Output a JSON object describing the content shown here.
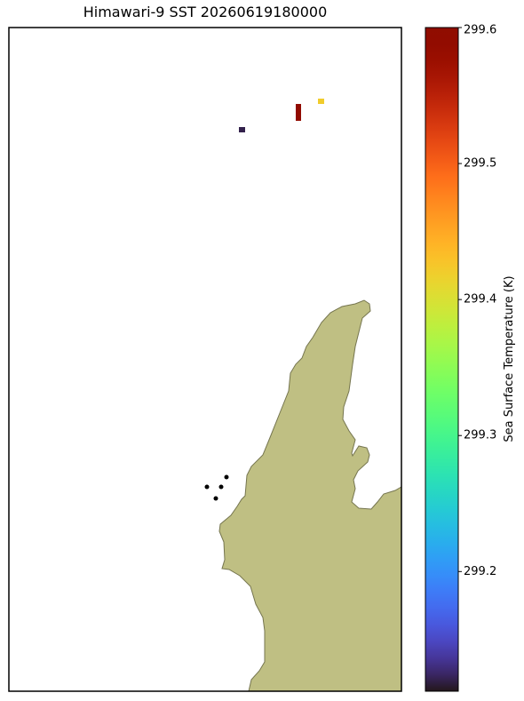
{
  "title": "Himawari-9 SST 20260619180000",
  "colorbar": {
    "label": "Sea Surface Temperature (K)",
    "colormap": "turbo",
    "clim": [
      299.112,
      299.6
    ],
    "ticks": [
      299.2,
      299.3,
      299.4,
      299.5,
      299.6
    ]
  },
  "pixels": [
    {
      "value": 299.12
    },
    {
      "value": 299.59
    },
    {
      "value": 299.42
    }
  ]
}
